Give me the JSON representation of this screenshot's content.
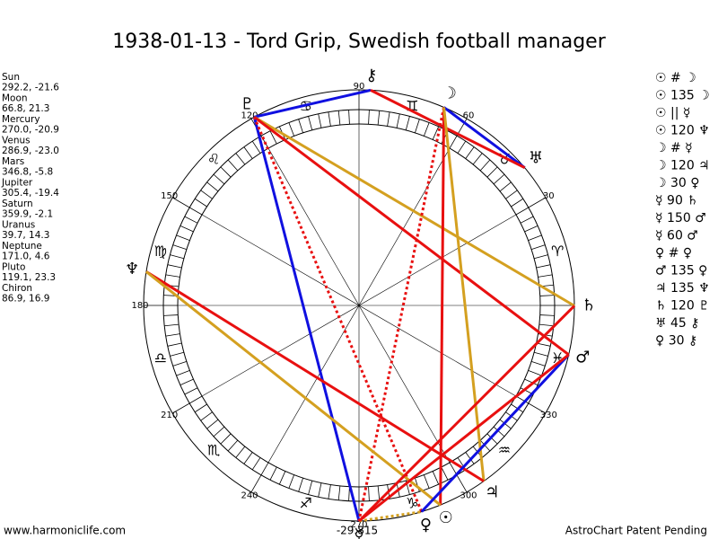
{
  "title": "1938-01-13 - Tord Grip, Swedish football manager",
  "planets": [
    {
      "name": "Sun",
      "position": "292.2, -21.6",
      "glyph": "☉"
    },
    {
      "name": "Moon",
      "position": "66.8, 21.3",
      "glyph": "☽"
    },
    {
      "name": "Mercury",
      "position": "270.0, -20.9",
      "glyph": "☿"
    },
    {
      "name": "Venus",
      "position": "286.9, -23.0",
      "glyph": "♀"
    },
    {
      "name": "Mars",
      "position": "346.8, -5.8",
      "glyph": "♂"
    },
    {
      "name": "Jupiter",
      "position": "305.4, -19.4",
      "glyph": "♃"
    },
    {
      "name": "Saturn",
      "position": "359.9, -2.1",
      "glyph": "♄"
    },
    {
      "name": "Uranus",
      "position": "39.7, 14.3",
      "glyph": "♅"
    },
    {
      "name": "Neptune",
      "position": "171.0, 4.6",
      "glyph": "♆"
    },
    {
      "name": "Pluto",
      "position": "119.1, 23.3",
      "glyph": "♇"
    },
    {
      "name": "Chiron",
      "position": "86.9, 16.9",
      "glyph": "⚷"
    }
  ],
  "zodiac": [
    "♈",
    "♉",
    "♊",
    "♋",
    "♌",
    "♍",
    "♎",
    "♏",
    "♐",
    "♑",
    "♒",
    "♓"
  ],
  "dial_labels": [
    30,
    60,
    90,
    120,
    150,
    180,
    210,
    240,
    270,
    300,
    330
  ],
  "aspects_list": [
    "☉ # ☽",
    "☉ 135 ☽",
    "☉ || ☿",
    "☉ 120 ♆",
    "☽ # ☿",
    "☽ 120 ♃",
    "☽ 30 ♀",
    "☿ 90 ♄",
    "☿ 150 ♂",
    "☿ 60 ♂",
    "♀ # ♀",
    "♂ 135 ♀",
    "♃ 135 ♆",
    "♄ 120 ♇",
    "♅ 45 ⚷",
    "♀ 30 ⚷"
  ],
  "aspect_lines": [
    {
      "from": "Chiron",
      "to": "Pluto",
      "color": "#1010e0",
      "style": "solid"
    },
    {
      "from": "Moon",
      "to": "Uranus",
      "color": "#1010e0",
      "style": "solid"
    },
    {
      "from": "Chiron",
      "to": "Uranus",
      "color": "#e81010",
      "style": "solid"
    },
    {
      "from": "Pluto",
      "to": "Saturn",
      "color": "#d4a020",
      "style": "solid"
    },
    {
      "from": "Pluto",
      "to": "Mars",
      "color": "#e81010",
      "style": "solid"
    },
    {
      "from": "Pluto",
      "to": "Mercury",
      "color": "#1010e0",
      "style": "solid"
    },
    {
      "from": "Pluto",
      "to": "Venus",
      "color": "#e81010",
      "style": "dotted"
    },
    {
      "from": "Moon",
      "to": "Sun",
      "color": "#e81010",
      "style": "solid"
    },
    {
      "from": "Moon",
      "to": "Mercury",
      "color": "#e81010",
      "style": "dotted"
    },
    {
      "from": "Moon",
      "to": "Jupiter",
      "color": "#d4a020",
      "style": "solid"
    },
    {
      "from": "Neptune",
      "to": "Jupiter",
      "color": "#e81010",
      "style": "solid"
    },
    {
      "from": "Neptune",
      "to": "Sun",
      "color": "#d4a020",
      "style": "solid"
    },
    {
      "from": "Saturn",
      "to": "Mercury",
      "color": "#e81010",
      "style": "solid"
    },
    {
      "from": "Mars",
      "to": "Venus",
      "color": "#1010e0",
      "style": "solid"
    },
    {
      "from": "Mercury",
      "to": "Venus",
      "color": "#d4a020",
      "style": "dotted"
    },
    {
      "from": "Mercury",
      "to": "Mars",
      "color": "#e81010",
      "style": "solid"
    }
  ],
  "footer": {
    "left": "www.harmoniclife.com",
    "center": "-29.815",
    "right": "AstroChart Patent Pending"
  }
}
